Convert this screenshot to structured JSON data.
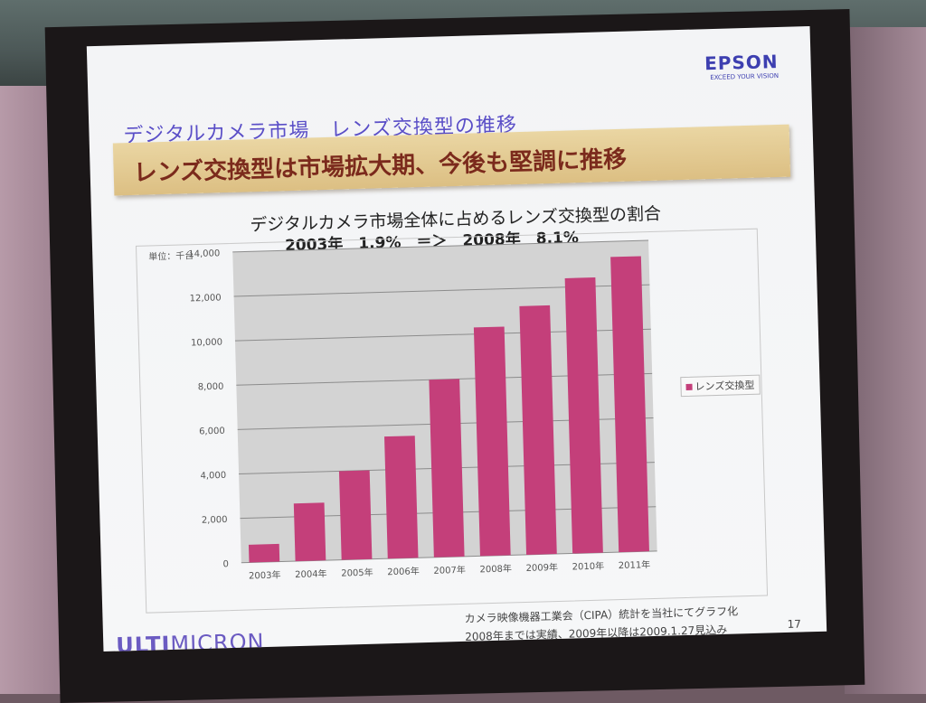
{
  "slide": {
    "title": "デジタルカメラ市場　レンズ交換型の推移",
    "banner": "レンズ交換型は市場拡大期、今後も堅調に推移",
    "subtitle_line1": "デジタルカメラ市場全体に占めるレンズ交換型の割合",
    "subtitle_line2": "2003年　1.9%　＝＞　2008年　8.1%",
    "unit_label": "単位：千台",
    "footnote_line1": "カメラ映像機器工業会（CIPA）統計を当社にてグラフ化",
    "footnote_line2": "2008年までは実績、2009年以降は2009.1.27見込み",
    "page_number": "17",
    "logo_brand": "EPSON",
    "logo_tagline": "EXCEED YOUR VISION",
    "footer_logo_bold": "ULTI",
    "footer_logo_rest": "MICRON"
  },
  "colors": {
    "bar": "#c43f7a",
    "plot_bg": "#d3d3d3",
    "gridline": "#8c8c8c"
  },
  "chart_data": {
    "type": "bar",
    "title": "デジタルカメラ市場全体に占めるレンズ交換型の割合",
    "ylabel": "単位：千台",
    "categories": [
      "2003年",
      "2004年",
      "2005年",
      "2006年",
      "2007年",
      "2008年",
      "2009年",
      "2010年",
      "2011年"
    ],
    "series": [
      {
        "name": "レンズ交換型",
        "values": [
          800,
          2600,
          4000,
          5500,
          8000,
          10300,
          11200,
          12400,
          13300
        ]
      }
    ],
    "ylim": [
      0,
      14000
    ],
    "yticks": [
      0,
      2000,
      4000,
      6000,
      8000,
      10000,
      12000,
      14000
    ],
    "ytick_labels": [
      "0",
      "2,000",
      "4,000",
      "6,000",
      "8,000",
      "10,000",
      "12,000",
      "14,000"
    ],
    "grid": true,
    "legend": "right"
  }
}
